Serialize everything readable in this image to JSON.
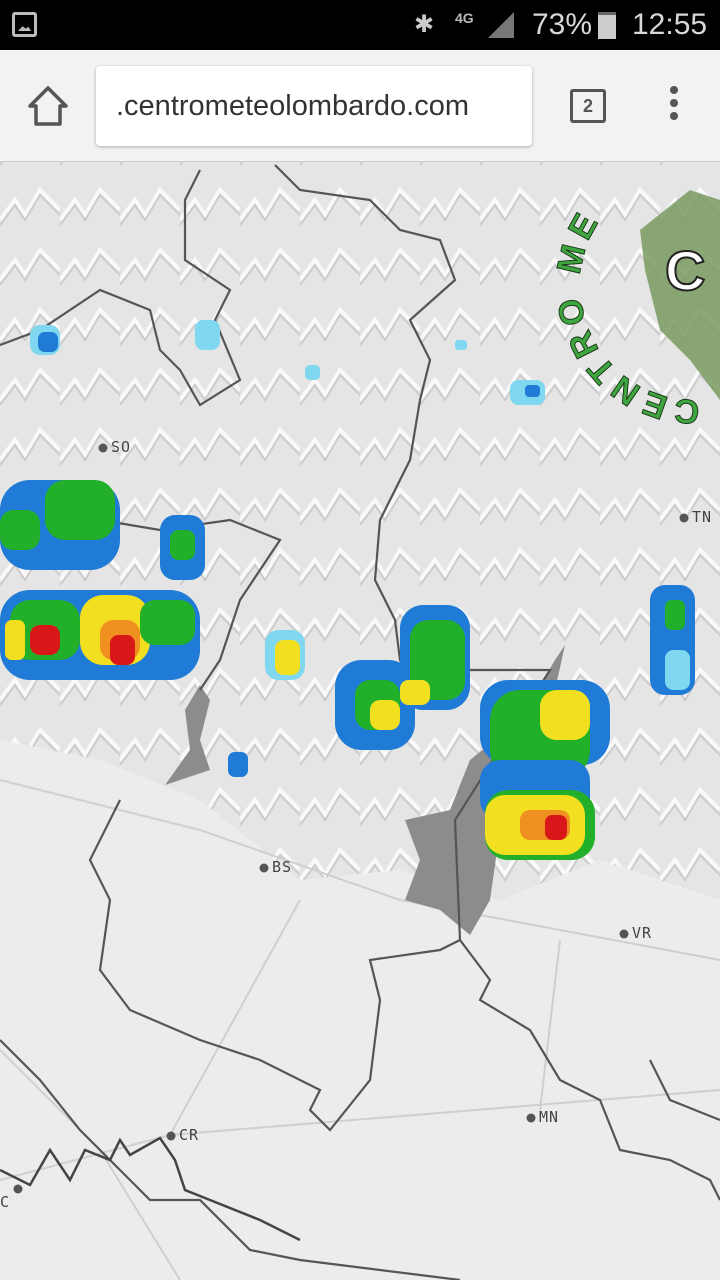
{
  "status_bar": {
    "battery": "73%",
    "time": "12:55",
    "network": "4G"
  },
  "browser": {
    "url": ".centrometeolombardo.com",
    "tab_count": "2"
  },
  "map": {
    "cities": [
      {
        "label": "SO"
      },
      {
        "label": "TN"
      },
      {
        "label": "BS"
      },
      {
        "label": "VR"
      },
      {
        "label": "CR"
      },
      {
        "label": "MN"
      },
      {
        "label": "C"
      }
    ],
    "logo": {
      "text": "CENTRO METEO LOMBARDO",
      "visible_letters": "CENTRO ME",
      "initials": "C"
    },
    "radar_colors": {
      "light": "#7fd8f0",
      "blue": "#1f7bd6",
      "green": "#22b02a",
      "yellow": "#f2e020",
      "orange": "#f09020",
      "red": "#d81818"
    },
    "lake_color": "#8c8c8c",
    "border_color": "#555555"
  }
}
